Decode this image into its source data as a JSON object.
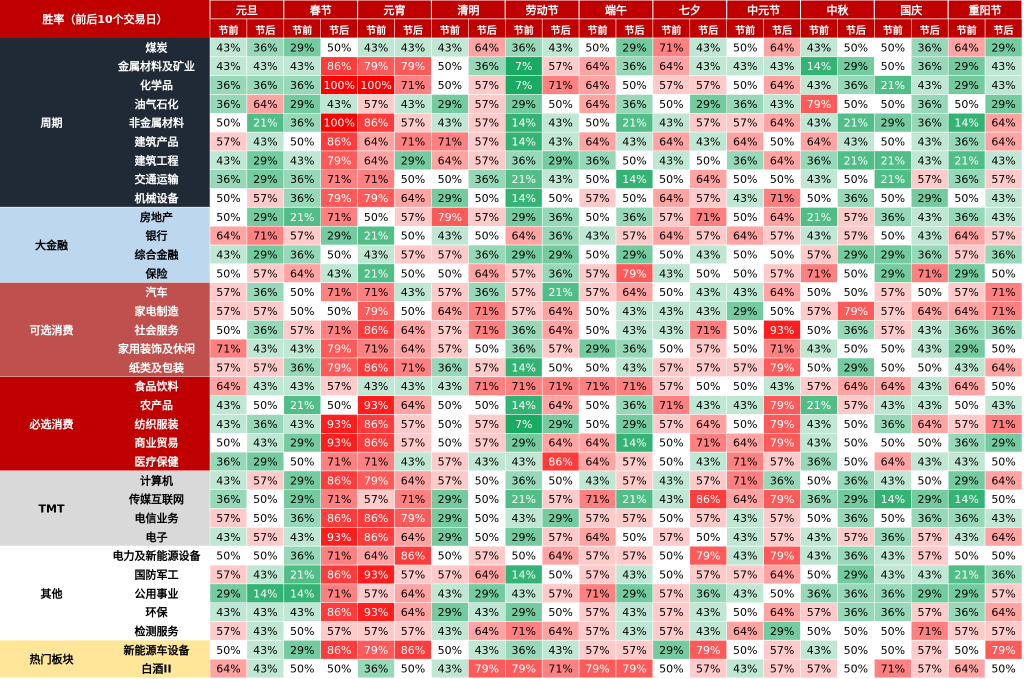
{
  "chart_data": {
    "type": "heatmap",
    "corner_label": "胜率（前后10个交易日）",
    "holidays": [
      "元旦",
      "春节",
      "元宵",
      "清明",
      "劳动节",
      "端午",
      "七夕",
      "中元节",
      "中秋",
      "国庆",
      "重阳节"
    ],
    "subcols": [
      "节前",
      "节后"
    ],
    "value_format": "percent",
    "range": [
      0,
      100
    ],
    "colors": {
      "header_bg": "#c00000",
      "header_text": "#ffffff",
      "low": "#00a050",
      "mid": "#ffffff",
      "high": "#ff0000",
      "group_周期": "#1f2a36",
      "group_大金融": "#bdd7ee",
      "group_可选消费": "#c0504d",
      "group_必选消费": "#c00000",
      "group_TMT": "#d9d9d9",
      "group_其他": "#ffffff",
      "group_热门板块": "#ffe699"
    },
    "groups": [
      {
        "name": "周期",
        "style": "dark",
        "rows": [
          {
            "label": "煤炭",
            "values": [
              43,
              36,
              29,
              50,
              43,
              43,
              43,
              64,
              36,
              43,
              50,
              29,
              71,
              43,
              50,
              64,
              43,
              50,
              50,
              36,
              64,
              29
            ]
          },
          {
            "label": "金属材料及矿业",
            "values": [
              43,
              43,
              43,
              86,
              79,
              79,
              50,
              36,
              7,
              57,
              64,
              36,
              64,
              43,
              43,
              43,
              14,
              29,
              50,
              36,
              29,
              43
            ]
          },
          {
            "label": "化学品",
            "values": [
              36,
              36,
              36,
              100,
              100,
              71,
              50,
              57,
              7,
              71,
              64,
              50,
              57,
              57,
              50,
              64,
              43,
              36,
              21,
              43,
              29,
              43
            ]
          },
          {
            "label": "油气石化",
            "values": [
              36,
              64,
              29,
              43,
              57,
              43,
              29,
              57,
              29,
              50,
              64,
              36,
              50,
              29,
              36,
              43,
              79,
              50,
              50,
              36,
              50,
              29
            ]
          },
          {
            "label": "非金属材料",
            "values": [
              50,
              21,
              36,
              100,
              86,
              57,
              43,
              57,
              14,
              43,
              50,
              21,
              43,
              57,
              57,
              64,
              43,
              21,
              29,
              36,
              14,
              64
            ]
          },
          {
            "label": "建筑产品",
            "values": [
              57,
              43,
              50,
              86,
              64,
              71,
              71,
              57,
              14,
              43,
              64,
              43,
              64,
              43,
              64,
              50,
              64,
              43,
              50,
              43,
              36,
              64
            ]
          },
          {
            "label": "建筑工程",
            "values": [
              43,
              29,
              43,
              79,
              64,
              29,
              64,
              57,
              36,
              29,
              36,
              50,
              43,
              50,
              36,
              64,
              36,
              21,
              21,
              43,
              21,
              43
            ]
          },
          {
            "label": "交通运输",
            "values": [
              36,
              29,
              36,
              71,
              71,
              50,
              50,
              36,
              21,
              43,
              50,
              14,
              50,
              64,
              50,
              50,
              43,
              50,
              21,
              57,
              36,
              57
            ]
          },
          {
            "label": "机械设备",
            "values": [
              50,
              57,
              36,
              79,
              79,
              64,
              29,
              50,
              14,
              50,
              57,
              50,
              64,
              57,
              43,
              71,
              50,
              36,
              50,
              29,
              50,
              43
            ]
          }
        ]
      },
      {
        "name": "大金融",
        "style": "light",
        "rows": [
          {
            "label": "房地产",
            "values": [
              50,
              29,
              21,
              71,
              50,
              57,
              79,
              57,
              29,
              36,
              50,
              36,
              57,
              71,
              50,
              64,
              21,
              57,
              36,
              43,
              36,
              43
            ]
          },
          {
            "label": "银行",
            "values": [
              64,
              71,
              57,
              29,
              21,
              50,
              43,
              50,
              64,
              36,
              43,
              57,
              64,
              57,
              64,
              57,
              43,
              57,
              50,
              43,
              64,
              57
            ]
          },
          {
            "label": "综合金融",
            "values": [
              43,
              29,
              36,
              50,
              43,
              57,
              57,
              36,
              29,
              29,
              50,
              29,
              50,
              43,
              50,
              50,
              57,
              29,
              29,
              36,
              57,
              36
            ]
          },
          {
            "label": "保险",
            "values": [
              50,
              57,
              64,
              43,
              21,
              50,
              50,
              64,
              57,
              36,
              57,
              79,
              43,
              50,
              50,
              57,
              71,
              50,
              29,
              71,
              29,
              50
            ]
          }
        ]
      },
      {
        "name": "可选消费",
        "style": "red",
        "rows": [
          {
            "label": "汽车",
            "values": [
              57,
              36,
              50,
              71,
              71,
              43,
              57,
              36,
              57,
              21,
              57,
              64,
              50,
              43,
              43,
              64,
              50,
              50,
              57,
              50,
              57,
              71
            ]
          },
          {
            "label": "家电制造",
            "values": [
              57,
              57,
              50,
              50,
              79,
              50,
              64,
              71,
              57,
              64,
              50,
              43,
              43,
              43,
              29,
              50,
              57,
              79,
              57,
              64,
              64,
              71
            ]
          },
          {
            "label": "社会服务",
            "values": [
              50,
              36,
              57,
              71,
              86,
              64,
              57,
              71,
              36,
              64,
              50,
              43,
              43,
              71,
              50,
              93,
              50,
              36,
              57,
              43,
              36,
              36
            ]
          },
          {
            "label": "家用装饰及休闲",
            "values": [
              71,
              43,
              43,
              79,
              71,
              64,
              57,
              50,
              36,
              57,
              29,
              36,
              50,
              57,
              50,
              71,
              43,
              50,
              50,
              43,
              29,
              50
            ]
          },
          {
            "label": "纸类及包装",
            "values": [
              57,
              57,
              36,
              79,
              86,
              71,
              36,
              57,
              14,
              50,
              50,
              43,
              57,
              57,
              57,
              79,
              50,
              29,
              50,
              50,
              43,
              64
            ]
          }
        ]
      },
      {
        "name": "必选消费",
        "style": "red",
        "rows": [
          {
            "label": "食品饮料",
            "values": [
              64,
              43,
              43,
              57,
              43,
              43,
              43,
              71,
              71,
              71,
              71,
              71,
              57,
              50,
              50,
              43,
              57,
              64,
              64,
              43,
              64,
              50
            ]
          },
          {
            "label": "农产品",
            "values": [
              43,
              50,
              21,
              50,
              93,
              64,
              50,
              50,
              14,
              64,
              50,
              36,
              71,
              43,
              43,
              79,
              21,
              57,
              43,
              43,
              50,
              43
            ]
          },
          {
            "label": "纺织服装",
            "values": [
              43,
              36,
              43,
              93,
              86,
              57,
              50,
              57,
              7,
              29,
              50,
              29,
              57,
              64,
              50,
              79,
              43,
              50,
              36,
              64,
              57,
              71
            ]
          },
          {
            "label": "商业贸易",
            "values": [
              50,
              43,
              29,
              93,
              86,
              57,
              50,
              57,
              29,
              64,
              64,
              14,
              50,
              71,
              64,
              79,
              43,
              50,
              50,
              50,
              36,
              29
            ]
          },
          {
            "label": "医疗保健",
            "values": [
              36,
              29,
              50,
              71,
              71,
              43,
              57,
              43,
              43,
              86,
              64,
              57,
              50,
              43,
              71,
              57,
              36,
              50,
              64,
              43,
              43,
              50
            ]
          }
        ]
      },
      {
        "name": "TMT",
        "style": "grey",
        "rows": [
          {
            "label": "计算机",
            "values": [
              43,
              57,
              29,
              86,
              79,
              64,
              57,
              50,
              36,
              50,
              43,
              57,
              43,
              57,
              71,
              36,
              50,
              36,
              43,
              50,
              29,
              64
            ]
          },
          {
            "label": "传媒互联网",
            "values": [
              36,
              50,
              29,
              71,
              57,
              71,
              29,
              50,
              21,
              57,
              71,
              21,
              43,
              86,
              64,
              79,
              36,
              29,
              14,
              29,
              14,
              50
            ]
          },
          {
            "label": "电信业务",
            "values": [
              57,
              50,
              36,
              86,
              86,
              79,
              29,
              50,
              43,
              29,
              57,
              57,
              50,
              57,
              43,
              57,
              50,
              36,
              50,
              36,
              36,
              43
            ]
          },
          {
            "label": "电子",
            "values": [
              43,
              57,
              43,
              93,
              86,
              64,
              29,
              50,
              29,
              57,
              64,
              50,
              57,
              50,
              43,
              57,
              43,
              57,
              36,
              57,
              43,
              64
            ]
          }
        ]
      },
      {
        "name": "其他",
        "style": "white",
        "rows": [
          {
            "label": "电力及新能源设备",
            "values": [
              50,
              50,
              36,
              71,
              64,
              86,
              50,
              57,
              50,
              64,
              57,
              57,
              50,
              79,
              43,
              79,
              43,
              36,
              43,
              57,
              50,
              50
            ]
          },
          {
            "label": "国防军工",
            "values": [
              57,
              43,
              21,
              86,
              93,
              57,
              57,
              64,
              14,
              50,
              57,
              43,
              50,
              57,
              57,
              64,
              50,
              29,
              43,
              43,
              21,
              36
            ]
          },
          {
            "label": "公用事业",
            "values": [
              29,
              14,
              14,
              71,
              57,
              64,
              43,
              29,
              43,
              57,
              71,
              29,
              57,
              36,
              43,
              50,
              36,
              36,
              36,
              29,
              29,
              57
            ]
          },
          {
            "label": "环保",
            "values": [
              43,
              43,
              43,
              86,
              93,
              64,
              29,
              43,
              29,
              50,
              57,
              43,
              57,
              43,
              50,
              64,
              57,
              36,
              36,
              57,
              36,
              64
            ]
          },
          {
            "label": "检测服务",
            "values": [
              57,
              43,
              50,
              57,
              57,
              57,
              43,
              64,
              71,
              64,
              57,
              43,
              57,
              43,
              64,
              29,
              50,
              50,
              50,
              71,
              57,
              57
            ]
          }
        ]
      },
      {
        "name": "热门板块",
        "style": "yellow",
        "rows": [
          {
            "label": "新能源车设备",
            "values": [
              50,
              43,
              29,
              86,
              79,
              86,
              50,
              43,
              36,
              43,
              57,
              57,
              29,
              79,
              50,
              57,
              43,
              50,
              50,
              57,
              50,
              79
            ]
          },
          {
            "label": "白酒II",
            "values": [
              64,
              43,
              50,
              50,
              36,
              50,
              43,
              79,
              79,
              71,
              79,
              79,
              50,
              57,
              43,
              57,
              57,
              50,
              71,
              57,
              64,
              50
            ]
          }
        ]
      }
    ]
  }
}
